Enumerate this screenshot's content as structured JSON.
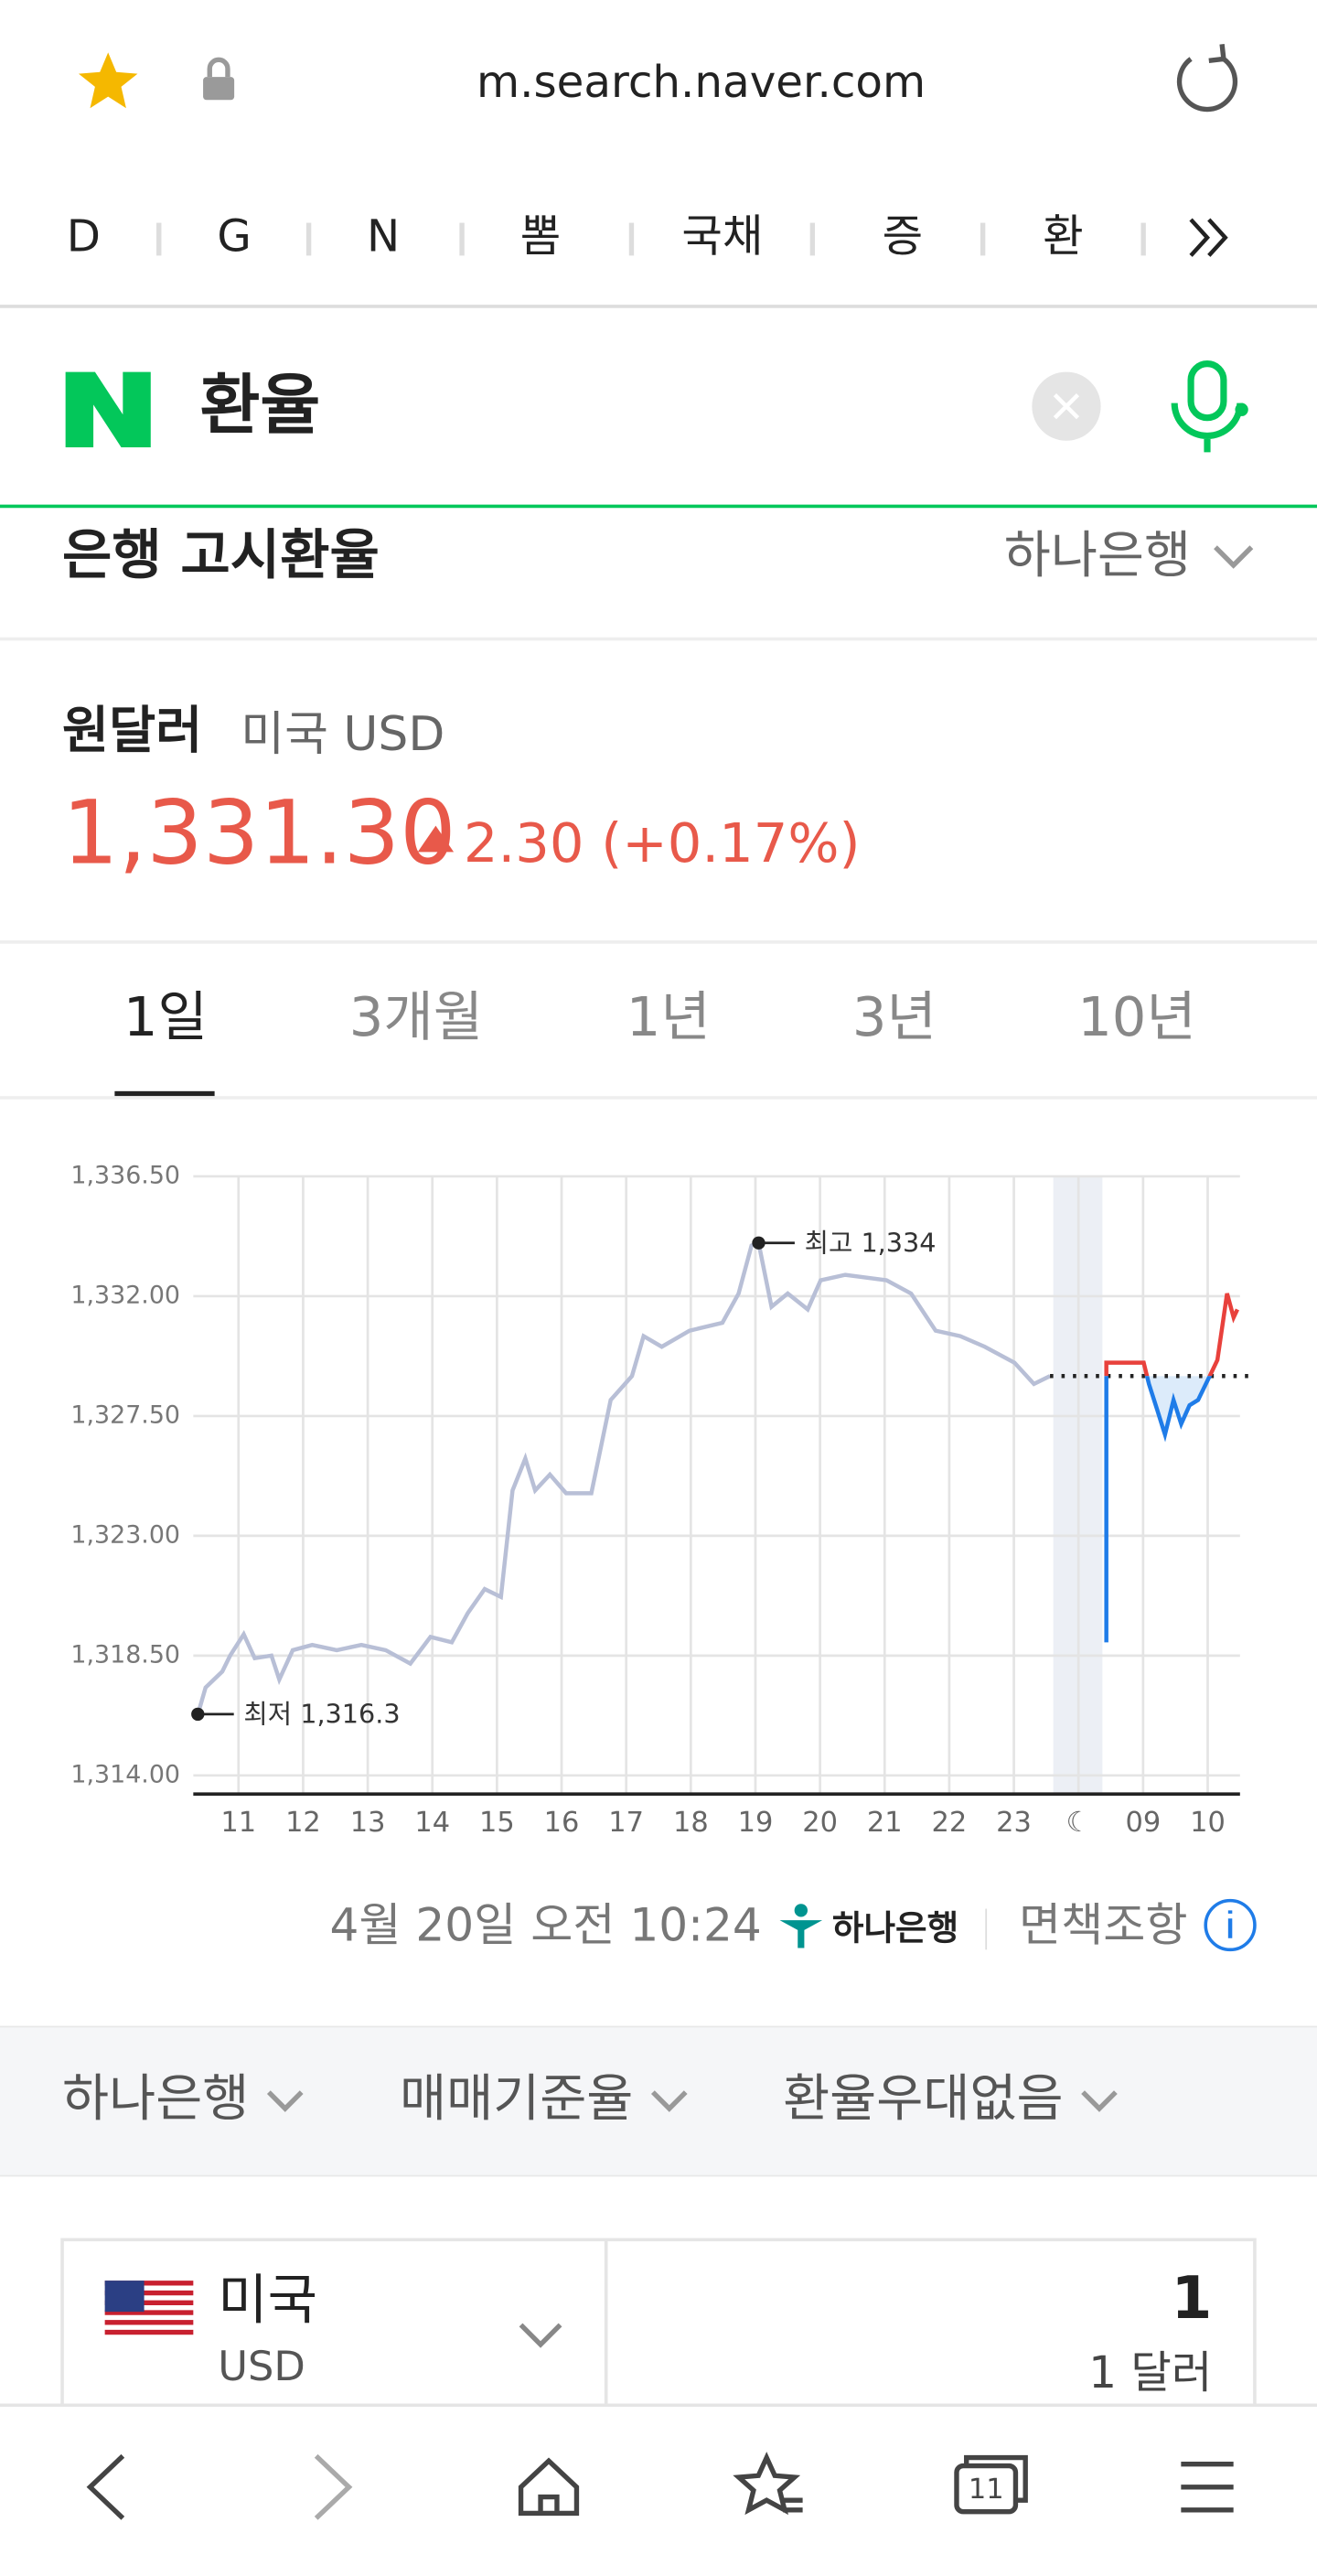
{
  "browser": {
    "url": "m.search.naver.com",
    "bookmarks": [
      "D",
      "G",
      "N",
      "뽐",
      "국채",
      "증",
      "환"
    ]
  },
  "search": {
    "query": "환율"
  },
  "section_title": "은행 고시환율",
  "bank_selector": "하나은행",
  "currency": {
    "name": "원달러",
    "code": "미국 USD",
    "rate": "1,331.30",
    "change": "2.30 (+0.17%)"
  },
  "tabs": [
    "1일",
    "3개월",
    "1년",
    "3년",
    "10년"
  ],
  "chart_data": {
    "type": "line",
    "xlim": [
      10.3,
      26.5
    ],
    "ylim": [
      1313.3,
      1336.5
    ],
    "xticks": [
      11,
      12,
      13,
      14,
      15,
      16,
      17,
      18,
      19,
      20,
      21,
      22,
      23,
      {
        "value": 24,
        "label": "☾"
      },
      {
        "value": 25,
        "label": "09"
      },
      {
        "value": 26,
        "label": "10"
      }
    ],
    "yticks": [
      {
        "value": 1314,
        "label": "1,314.00"
      },
      {
        "value": 1318.5,
        "label": "1,318.50"
      },
      {
        "value": 1323,
        "label": "1,323.00"
      },
      {
        "value": 1327.5,
        "label": "1,327.50"
      },
      {
        "value": 1332,
        "label": "1,332.00"
      },
      {
        "value": 1336.5,
        "label": "1,336.50"
      }
    ],
    "grid": true,
    "baseline": 1329,
    "fill": "#dcebfa",
    "series": [
      {
        "color": "#b8bfd6",
        "x": [
          10.37,
          10.49,
          10.62,
          10.75,
          10.87,
          11.08,
          11.25,
          11.51,
          11.63,
          11.84,
          12.14,
          12.52,
          12.9,
          13.28,
          13.66,
          13.97,
          14.3,
          14.55,
          14.81,
          15.06,
          15.24,
          15.44,
          15.59,
          15.82,
          16.07,
          16.46,
          16.76,
          17.09,
          17.27,
          17.55,
          17.98,
          18.49,
          18.74,
          18.94,
          19.05,
          19.25,
          19.5,
          19.81,
          20.01,
          20.39,
          21.03,
          21.41,
          21.79,
          22.17,
          22.55,
          23.01,
          23.31,
          23.56
        ],
        "values": [
          1316.3,
          1317.3,
          1317.6,
          1317.9,
          1318.5,
          1319.3,
          1318.4,
          1318.5,
          1317.6,
          1318.7,
          1318.9,
          1318.7,
          1318.9,
          1318.7,
          1318.2,
          1319.2,
          1319,
          1320.1,
          1321,
          1320.7,
          1324.7,
          1325.9,
          1324.7,
          1325.3,
          1324.6,
          1324.6,
          1328.1,
          1329,
          1330.5,
          1330.1,
          1330.7,
          1331,
          1332.1,
          1333.9,
          1334,
          1331.6,
          1332.1,
          1331.5,
          1332.6,
          1332.8,
          1332.6,
          1332.1,
          1330.7,
          1330.5,
          1330.1,
          1329.5,
          1328.7,
          1329
        ]
      },
      {
        "color": "#1f7ce8",
        "color_up": "#e8413c",
        "x": [
          24.43,
          24.43,
          25.01,
          25.09,
          25.21,
          25.34,
          25.47,
          25.59,
          25.72,
          25.85,
          26.03,
          26.15,
          26.3,
          26.4,
          26.46
        ],
        "values": [
          1319,
          1329.5,
          1329.5,
          1328.7,
          1327.8,
          1326.8,
          1328.1,
          1327.2,
          1327.9,
          1328.1,
          1329,
          1329.6,
          1332.1,
          1331.2,
          1331.5
        ]
      }
    ],
    "annotations": [
      {
        "text": "최고 1,334",
        "x": 19.05,
        "y": 1334
      },
      {
        "text": "최저 1,316.3",
        "x": 10.37,
        "y": 1316.3
      }
    ]
  },
  "timestamp": "4월 20일 오전 10:24",
  "bank_logo": "하나은행",
  "disclaimer": "면책조항",
  "filters": [
    "하나은행",
    "매매기준율",
    "환율우대없음"
  ],
  "converter": {
    "country": "미국",
    "code": "USD",
    "amount": "1",
    "unit": "1 달러"
  },
  "nav_badge": "11"
}
